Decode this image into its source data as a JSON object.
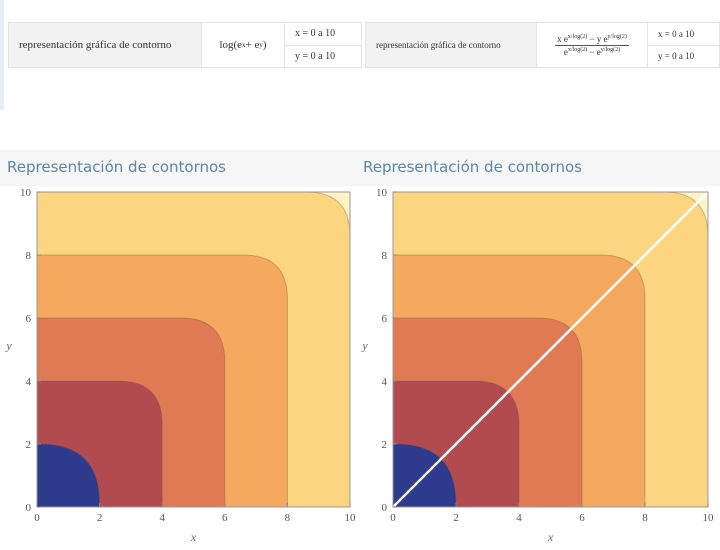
{
  "queries": [
    {
      "label": "representación gráfica de contorno",
      "expression": [
        {
          "text": "log(e"
        },
        {
          "sup": "x"
        },
        {
          "text": " + e"
        },
        {
          "sup": "y"
        },
        {
          "text": ")"
        }
      ],
      "ranges": [
        "x = 0 a 10",
        "y = 0 a 10"
      ]
    },
    {
      "label": "representación gráfica de contorno",
      "numerator": [
        {
          "text": "x e"
        },
        {
          "sup": "x/log(2)"
        },
        {
          "text": " − y e"
        },
        {
          "sup": "y/log(2)"
        }
      ],
      "denominator": [
        {
          "text": "e"
        },
        {
          "sup": "x/log(2)"
        },
        {
          "text": " − e"
        },
        {
          "sup": "y/log(2)"
        }
      ],
      "ranges": [
        "x = 0 a 10",
        "y = 0 a 10"
      ]
    }
  ],
  "plots": [
    {
      "title": "Representación de contornos",
      "x_label": "x",
      "y_label": "y",
      "xlim": [
        0,
        10
      ],
      "ylim": [
        0,
        10
      ],
      "xticks": [
        0,
        2,
        4,
        6,
        8,
        10
      ],
      "yticks": [
        0,
        2,
        4,
        6,
        8,
        10
      ],
      "diagonal": false
    },
    {
      "title": "Representación de contornos",
      "x_label": "x",
      "y_label": "y",
      "xlim": [
        0,
        10
      ],
      "ylim": [
        0,
        10
      ],
      "xticks": [
        0,
        2,
        4,
        6,
        8,
        10
      ],
      "yticks": [
        0,
        2,
        4,
        6,
        8,
        10
      ],
      "diagonal": true
    }
  ]
}
